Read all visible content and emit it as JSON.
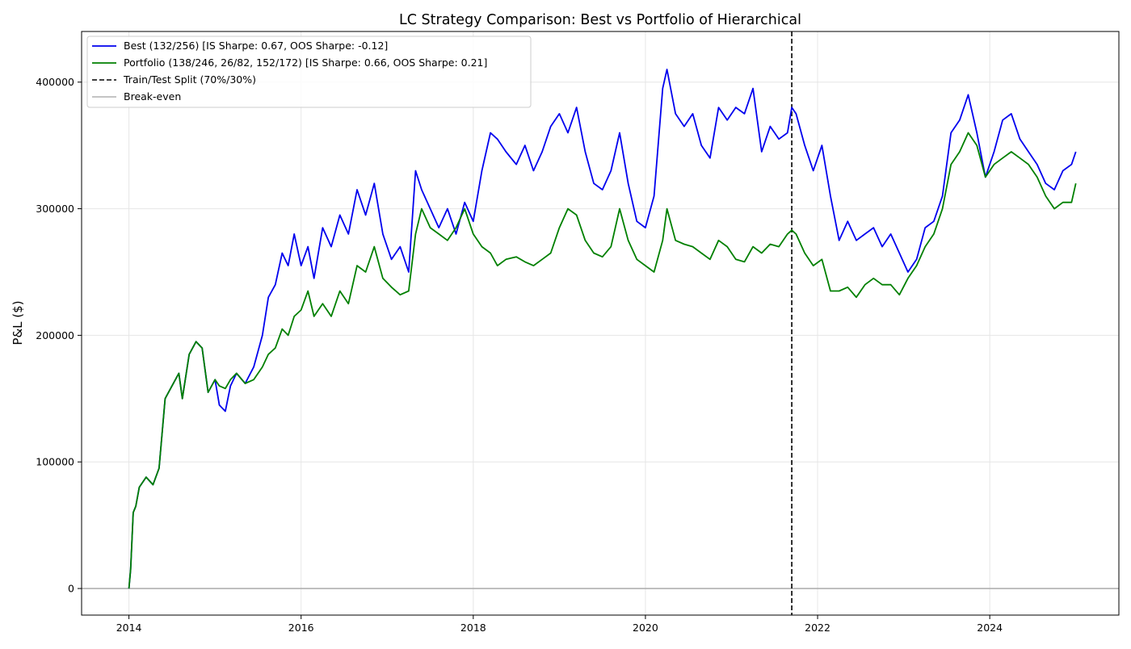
{
  "chart_data": {
    "type": "line",
    "title": "LC Strategy Comparison: Best vs Portfolio of Hierarchical",
    "xlabel": "",
    "ylabel": "P&L ($)",
    "xlim": [
      2013.45,
      2025.5
    ],
    "ylim": [
      -21000,
      440000
    ],
    "x_ticks": [
      2014,
      2016,
      2018,
      2020,
      2022,
      2024
    ],
    "y_ticks": [
      0,
      100000,
      200000,
      300000,
      400000
    ],
    "grid": true,
    "legend_position": "top-left",
    "split": {
      "x": 2021.7,
      "label": "Train/Test Split (70%/30%)",
      "color": "#000000",
      "style": "dashed"
    },
    "breakeven": {
      "y": 0,
      "label": "Break-even",
      "color": "#b0b0b0"
    },
    "series": [
      {
        "name": "Best (132/256) [IS Sharpe: 0.67, OOS Sharpe: -0.12]",
        "color": "#0000ee",
        "x": [
          2014.0,
          2014.02,
          2014.05,
          2014.08,
          2014.12,
          2014.2,
          2014.28,
          2014.35,
          2014.42,
          2014.5,
          2014.58,
          2014.62,
          2014.7,
          2014.78,
          2014.85,
          2014.92,
          2015.0,
          2015.05,
          2015.12,
          2015.18,
          2015.25,
          2015.35,
          2015.45,
          2015.55,
          2015.62,
          2015.7,
          2015.78,
          2015.85,
          2015.92,
          2016.0,
          2016.08,
          2016.15,
          2016.25,
          2016.35,
          2016.45,
          2016.55,
          2016.65,
          2016.75,
          2016.85,
          2016.95,
          2017.05,
          2017.15,
          2017.25,
          2017.33,
          2017.4,
          2017.5,
          2017.6,
          2017.7,
          2017.8,
          2017.9,
          2018.0,
          2018.1,
          2018.2,
          2018.28,
          2018.38,
          2018.5,
          2018.6,
          2018.7,
          2018.8,
          2018.9,
          2019.0,
          2019.1,
          2019.2,
          2019.3,
          2019.4,
          2019.5,
          2019.6,
          2019.7,
          2019.8,
          2019.9,
          2020.0,
          2020.1,
          2020.2,
          2020.25,
          2020.35,
          2020.45,
          2020.55,
          2020.65,
          2020.75,
          2020.85,
          2020.95,
          2021.05,
          2021.15,
          2021.25,
          2021.35,
          2021.45,
          2021.55,
          2021.65,
          2021.7,
          2021.75,
          2021.85,
          2021.95,
          2022.05,
          2022.15,
          2022.25,
          2022.35,
          2022.45,
          2022.55,
          2022.65,
          2022.75,
          2022.85,
          2022.95,
          2023.05,
          2023.15,
          2023.25,
          2023.35,
          2023.45,
          2023.55,
          2023.65,
          2023.75,
          2023.85,
          2023.95,
          2024.05,
          2024.15,
          2024.25,
          2024.35,
          2024.45,
          2024.55,
          2024.65,
          2024.75,
          2024.85,
          2024.95,
          2025.0
        ],
        "y": [
          0,
          15000,
          60000,
          65000,
          80000,
          88000,
          82000,
          95000,
          150000,
          160000,
          170000,
          150000,
          185000,
          195000,
          190000,
          155000,
          165000,
          145000,
          140000,
          160000,
          170000,
          162000,
          175000,
          200000,
          230000,
          240000,
          265000,
          255000,
          280000,
          255000,
          270000,
          245000,
          285000,
          270000,
          295000,
          280000,
          315000,
          295000,
          320000,
          280000,
          260000,
          270000,
          250000,
          330000,
          315000,
          300000,
          285000,
          300000,
          280000,
          305000,
          290000,
          330000,
          360000,
          355000,
          345000,
          335000,
          350000,
          330000,
          345000,
          365000,
          375000,
          360000,
          380000,
          345000,
          320000,
          315000,
          330000,
          360000,
          320000,
          290000,
          285000,
          310000,
          395000,
          410000,
          375000,
          365000,
          375000,
          350000,
          340000,
          380000,
          370000,
          380000,
          375000,
          395000,
          345000,
          365000,
          355000,
          360000,
          380000,
          375000,
          350000,
          330000,
          350000,
          310000,
          275000,
          290000,
          275000,
          280000,
          285000,
          270000,
          280000,
          265000,
          250000,
          260000,
          285000,
          290000,
          310000,
          360000,
          370000,
          390000,
          360000,
          325000,
          345000,
          370000,
          375000,
          355000,
          345000,
          335000,
          320000,
          315000,
          330000,
          335000,
          345000
        ]
      },
      {
        "name": "Portfolio (138/246, 26/82, 152/172) [IS Sharpe: 0.66, OOS Sharpe: 0.21]",
        "color": "#008000",
        "x": [
          2014.0,
          2014.02,
          2014.05,
          2014.08,
          2014.12,
          2014.2,
          2014.28,
          2014.35,
          2014.42,
          2014.5,
          2014.58,
          2014.62,
          2014.7,
          2014.78,
          2014.85,
          2014.92,
          2015.0,
          2015.05,
          2015.12,
          2015.18,
          2015.25,
          2015.35,
          2015.45,
          2015.55,
          2015.62,
          2015.7,
          2015.78,
          2015.85,
          2015.92,
          2016.0,
          2016.08,
          2016.15,
          2016.25,
          2016.35,
          2016.45,
          2016.55,
          2016.65,
          2016.75,
          2016.85,
          2016.95,
          2017.05,
          2017.15,
          2017.25,
          2017.33,
          2017.4,
          2017.5,
          2017.6,
          2017.7,
          2017.8,
          2017.9,
          2018.0,
          2018.1,
          2018.2,
          2018.28,
          2018.38,
          2018.5,
          2018.6,
          2018.7,
          2018.8,
          2018.9,
          2019.0,
          2019.1,
          2019.2,
          2019.3,
          2019.4,
          2019.5,
          2019.6,
          2019.7,
          2019.8,
          2019.9,
          2020.0,
          2020.1,
          2020.2,
          2020.25,
          2020.35,
          2020.45,
          2020.55,
          2020.65,
          2020.75,
          2020.85,
          2020.95,
          2021.05,
          2021.15,
          2021.25,
          2021.35,
          2021.45,
          2021.55,
          2021.65,
          2021.7,
          2021.75,
          2021.85,
          2021.95,
          2022.05,
          2022.15,
          2022.25,
          2022.35,
          2022.45,
          2022.55,
          2022.65,
          2022.75,
          2022.85,
          2022.95,
          2023.05,
          2023.15,
          2023.25,
          2023.35,
          2023.45,
          2023.55,
          2023.65,
          2023.75,
          2023.85,
          2023.95,
          2024.05,
          2024.15,
          2024.25,
          2024.35,
          2024.45,
          2024.55,
          2024.65,
          2024.75,
          2024.85,
          2024.95,
          2025.0
        ],
        "y": [
          0,
          15000,
          60000,
          65000,
          80000,
          88000,
          82000,
          95000,
          150000,
          160000,
          170000,
          150000,
          185000,
          195000,
          190000,
          155000,
          165000,
          160000,
          158000,
          165000,
          170000,
          162000,
          165000,
          175000,
          185000,
          190000,
          205000,
          200000,
          215000,
          220000,
          235000,
          215000,
          225000,
          215000,
          235000,
          225000,
          255000,
          250000,
          270000,
          245000,
          238000,
          232000,
          235000,
          280000,
          300000,
          285000,
          280000,
          275000,
          285000,
          300000,
          280000,
          270000,
          265000,
          255000,
          260000,
          262000,
          258000,
          255000,
          260000,
          265000,
          285000,
          300000,
          295000,
          275000,
          265000,
          262000,
          270000,
          300000,
          275000,
          260000,
          255000,
          250000,
          275000,
          300000,
          275000,
          272000,
          270000,
          265000,
          260000,
          275000,
          270000,
          260000,
          258000,
          270000,
          265000,
          272000,
          270000,
          280000,
          283000,
          280000,
          265000,
          255000,
          260000,
          235000,
          235000,
          238000,
          230000,
          240000,
          245000,
          240000,
          240000,
          232000,
          245000,
          255000,
          270000,
          280000,
          300000,
          335000,
          345000,
          360000,
          350000,
          325000,
          335000,
          340000,
          345000,
          340000,
          335000,
          325000,
          310000,
          300000,
          305000,
          305000,
          320000
        ]
      }
    ]
  }
}
